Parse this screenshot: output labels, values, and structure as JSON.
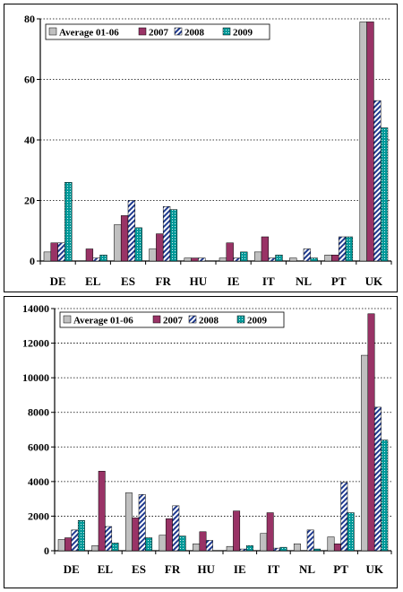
{
  "chart_data": [
    {
      "type": "bar",
      "categories": [
        "DE",
        "EL",
        "ES",
        "FR",
        "HU",
        "IE",
        "IT",
        "NL",
        "PT",
        "UK"
      ],
      "ylim": [
        0,
        80
      ],
      "yticks": [
        0,
        20,
        40,
        60,
        80
      ],
      "grid": true,
      "legend_position": "top-left",
      "series": [
        {
          "name": "Average 01-06",
          "values": [
            3,
            0,
            12,
            4,
            1,
            1,
            3,
            1,
            2,
            79
          ]
        },
        {
          "name": "2007",
          "values": [
            6,
            4,
            15,
            9,
            1,
            6,
            8,
            0,
            2,
            79
          ]
        },
        {
          "name": "2008",
          "values": [
            6,
            1,
            20,
            18,
            1,
            1,
            1,
            4,
            8,
            53
          ]
        },
        {
          "name": "2009",
          "values": [
            26,
            2,
            11,
            17,
            0,
            3,
            2,
            1,
            8,
            44
          ]
        }
      ]
    },
    {
      "type": "bar",
      "categories": [
        "DE",
        "EL",
        "ES",
        "FR",
        "HU",
        "IE",
        "IT",
        "NL",
        "PT",
        "UK"
      ],
      "ylim": [
        0,
        14000
      ],
      "yticks": [
        0,
        2000,
        4000,
        6000,
        8000,
        10000,
        12000,
        14000
      ],
      "grid": true,
      "legend_position": "top-left",
      "series": [
        {
          "name": "Average 01-06",
          "values": [
            650,
            300,
            3350,
            900,
            400,
            250,
            1000,
            400,
            800,
            11300
          ]
        },
        {
          "name": "2007",
          "values": [
            750,
            4600,
            1900,
            1850,
            1100,
            2300,
            2200,
            0,
            400,
            13700
          ]
        },
        {
          "name": "2008",
          "values": [
            1200,
            1400,
            3250,
            2600,
            600,
            100,
            150,
            1200,
            3950,
            8300
          ]
        },
        {
          "name": "2009",
          "values": [
            1750,
            450,
            750,
            850,
            0,
            300,
            200,
            100,
            2200,
            6400
          ]
        }
      ]
    }
  ],
  "series_colors": [
    "#c0c0c0",
    "#993366",
    "#1f3a8f",
    "#009999"
  ]
}
